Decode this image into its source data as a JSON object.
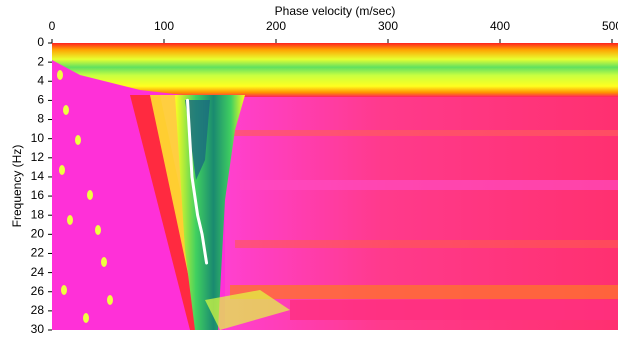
{
  "chart_data": {
    "type": "line",
    "xlabel": "Phase velocity (m/sec)",
    "ylabel": "Frequency (Hz)",
    "x": [
      121,
      123,
      125,
      130,
      134,
      138
    ],
    "values": [
      6,
      10,
      14,
      18,
      20,
      23
    ],
    "color": "#ffffff",
    "xlim": [
      0,
      500
    ],
    "xticks": [
      0,
      100,
      200,
      300,
      400,
      500
    ],
    "ylim": [
      0,
      30
    ],
    "yticks": [
      0,
      2,
      4,
      6,
      8,
      10,
      12,
      14,
      16,
      18,
      20,
      22,
      24,
      26,
      28,
      30
    ],
    "y_inverted": true,
    "x_axis_position": "top"
  }
}
